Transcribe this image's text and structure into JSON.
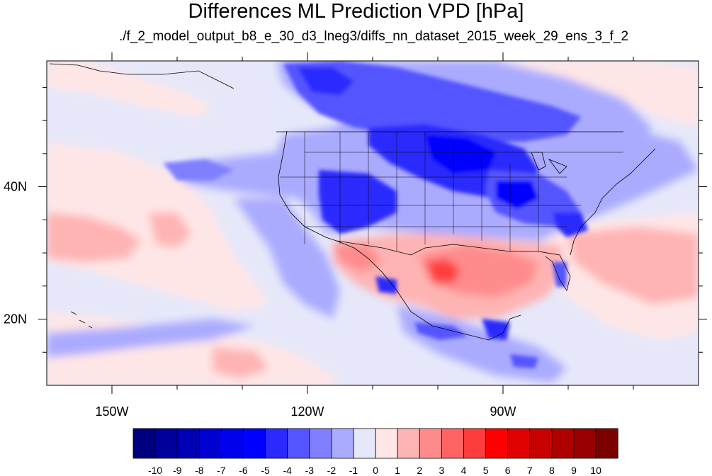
{
  "title": "Differences ML Prediction VPD [hPa]",
  "subtitle": "./f_2_model_output_b8_e_30_d3_lneg3/diffs_nn_dataset_2015_week_29_ens_3_f_2",
  "map": {
    "lon_range": [
      -160,
      -60
    ],
    "lat_range": [
      10,
      59
    ],
    "lon_ticks": [
      {
        "value": -150,
        "label": "150W"
      },
      {
        "value": -120,
        "label": "120W"
      },
      {
        "value": -90,
        "label": "90W"
      }
    ],
    "lat_ticks": [
      {
        "value": 40,
        "label": "40N"
      },
      {
        "value": 20,
        "label": "20N"
      }
    ],
    "background_color": "#e6e8fa"
  },
  "colorbar": {
    "labels": [
      "-10",
      "-9",
      "-8",
      "-7",
      "-6",
      "-5",
      "-4",
      "-3",
      "-2",
      "-1",
      "0",
      "1",
      "2",
      "3",
      "4",
      "5",
      "6",
      "7",
      "8",
      "9",
      "10"
    ],
    "colors": [
      "#00007f",
      "#00009a",
      "#0000b5",
      "#0000d0",
      "#0000ea",
      "#0000ff",
      "#2a2aff",
      "#5555ff",
      "#8080ff",
      "#aaaaff",
      "#e6e8fa",
      "#ffe6e6",
      "#ffb4b4",
      "#ff8c8c",
      "#ff6464",
      "#ff3c3c",
      "#ff0000",
      "#e10000",
      "#c80000",
      "#af0000",
      "#960000",
      "#7d0000"
    ]
  }
}
